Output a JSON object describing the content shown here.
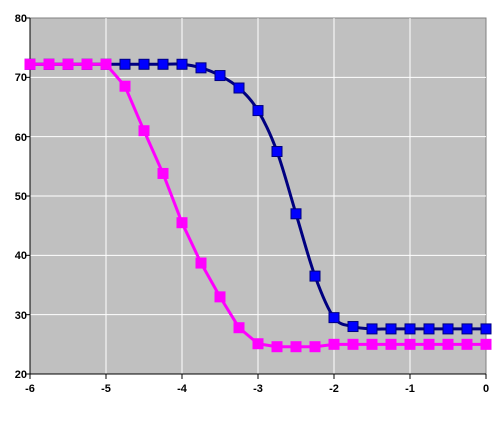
{
  "chart_data": {
    "type": "line",
    "title": "",
    "xlabel": "",
    "ylabel": "",
    "xlim": [
      -6,
      0
    ],
    "ylim": [
      20,
      80
    ],
    "x_ticks": [
      "-6",
      "-5",
      "-4",
      "-3",
      "-2",
      "-1",
      "0"
    ],
    "y_ticks": [
      "20",
      "30",
      "40",
      "50",
      "60",
      "70",
      "80"
    ],
    "grid": true,
    "legend": "none",
    "background_color": "#c0c0c0",
    "series": [
      {
        "color": "#000080",
        "marker_color": "#0000ff",
        "marker": "square",
        "smooth": true,
        "x": [
          -6.0,
          -5.75,
          -5.5,
          -5.25,
          -5.0,
          -4.75,
          -4.5,
          -4.25,
          -4.0,
          -3.75,
          -3.5,
          -3.25,
          -3.0,
          -2.75,
          -2.5,
          -2.25,
          -2.0,
          -1.75,
          -1.5,
          -1.25,
          -1.0,
          -0.75,
          -0.5,
          -0.25,
          0.0
        ],
        "y": [
          72.2,
          72.2,
          72.2,
          72.2,
          72.2,
          72.2,
          72.2,
          72.2,
          72.2,
          71.6,
          70.3,
          68.2,
          64.4,
          57.5,
          47.0,
          36.5,
          29.5,
          28.0,
          27.6,
          27.6,
          27.6,
          27.6,
          27.6,
          27.6,
          27.6
        ]
      },
      {
        "color": "#ff00ff",
        "marker_color": "#ff00ff",
        "marker": "square",
        "smooth": false,
        "x": [
          -6.0,
          -5.75,
          -5.5,
          -5.25,
          -5.0,
          -4.75,
          -4.5,
          -4.25,
          -4.0,
          -3.75,
          -3.5,
          -3.25,
          -3.0,
          -2.75,
          -2.5,
          -2.25,
          -2.0,
          -1.75,
          -1.5,
          -1.25,
          -1.0,
          -0.75,
          -0.5,
          -0.25,
          0.0
        ],
        "y": [
          72.2,
          72.2,
          72.2,
          72.2,
          72.2,
          68.5,
          61.0,
          53.8,
          45.5,
          38.7,
          33.0,
          27.8,
          25.1,
          24.6,
          24.6,
          24.6,
          25.0,
          25.0,
          25.0,
          25.0,
          25.0,
          25.0,
          25.0,
          25.0,
          25.0
        ]
      }
    ]
  }
}
